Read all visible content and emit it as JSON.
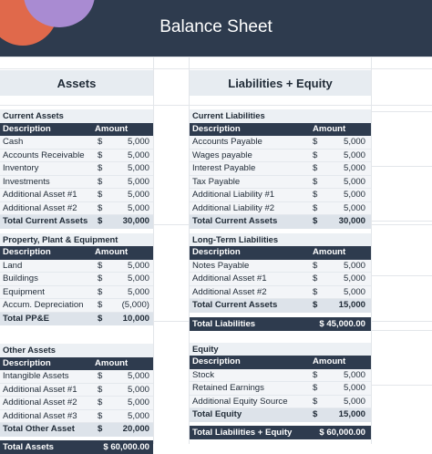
{
  "title": "Balance Sheet",
  "assets_heading": "Assets",
  "liabilities_heading": "Liabilities + Equity",
  "dollar": "$",
  "left": {
    "current": {
      "heading": "Current Assets",
      "col_desc": "Description",
      "col_amt": "Amount",
      "rows": [
        {
          "label": "Cash",
          "value": "5,000"
        },
        {
          "label": "Accounts Receivable",
          "value": "5,000"
        },
        {
          "label": "Inventory",
          "value": "5,000"
        },
        {
          "label": "Investments",
          "value": "5,000"
        },
        {
          "label": "Additional Asset #1",
          "value": "5,000"
        },
        {
          "label": "Additional Asset #2",
          "value": "5,000"
        }
      ],
      "total_label": "Total Current Assets",
      "total_value": "30,000"
    },
    "ppe": {
      "heading": "Property, Plant & Equipment",
      "col_desc": "Description",
      "col_amt": "Amount",
      "rows": [
        {
          "label": "Land",
          "value": "5,000"
        },
        {
          "label": "Buildings",
          "value": "5,000"
        },
        {
          "label": "Equipment",
          "value": "5,000"
        },
        {
          "label": "Accum. Depreciation",
          "value": "(5,000)"
        }
      ],
      "total_label": "Total PP&E",
      "total_value": "10,000"
    },
    "other": {
      "heading": "Other Assets",
      "col_desc": "Description",
      "col_amt": "Amount",
      "rows": [
        {
          "label": "Intangible Assets",
          "value": "5,000"
        },
        {
          "label": "Additional Asset #1",
          "value": "5,000"
        },
        {
          "label": "Additional Asset #2",
          "value": "5,000"
        },
        {
          "label": "Additional Asset #3",
          "value": "5,000"
        }
      ],
      "total_label": "Total Other Asset",
      "total_value": "20,000"
    },
    "grand_label": "Total Assets",
    "grand_value": "$ 60,000.00"
  },
  "right": {
    "current": {
      "heading": "Current Liabilities",
      "col_desc": "Description",
      "col_amt": "Amount",
      "rows": [
        {
          "label": "Accounts Payable",
          "value": "5,000"
        },
        {
          "label": "Wages payable",
          "value": "5,000"
        },
        {
          "label": "Interest Payable",
          "value": "5,000"
        },
        {
          "label": "Tax Payable",
          "value": "5,000"
        },
        {
          "label": "Additional Liability #1",
          "value": "5,000"
        },
        {
          "label": "Additional Liability #2",
          "value": "5,000"
        }
      ],
      "total_label": "Total Current Assets",
      "total_value": "30,000"
    },
    "longterm": {
      "heading": "Long-Term Liabilities",
      "col_desc": "Description",
      "col_amt": "Amount",
      "rows": [
        {
          "label": "Notes Payable",
          "value": "5,000"
        },
        {
          "label": "Additional Asset #1",
          "value": "5,000"
        },
        {
          "label": "Additional Asset #2",
          "value": "5,000"
        }
      ],
      "total_label": "Total Current Assets",
      "total_value": "15,000"
    },
    "total_liab_label": "Total Liabilities",
    "total_liab_value": "$ 45,000.00",
    "equity": {
      "heading": "Equity",
      "col_desc": "Description",
      "col_amt": "Amount",
      "rows": [
        {
          "label": "Stock",
          "value": "5,000"
        },
        {
          "label": "Retained Earnings",
          "value": "5,000"
        },
        {
          "label": "Additional Equity Source",
          "value": "5,000"
        }
      ],
      "total_label": "Total Equity",
      "total_value": "15,000"
    },
    "grand_label": "Total Liabilities + Equity",
    "grand_value": "$ 60,000.00"
  }
}
